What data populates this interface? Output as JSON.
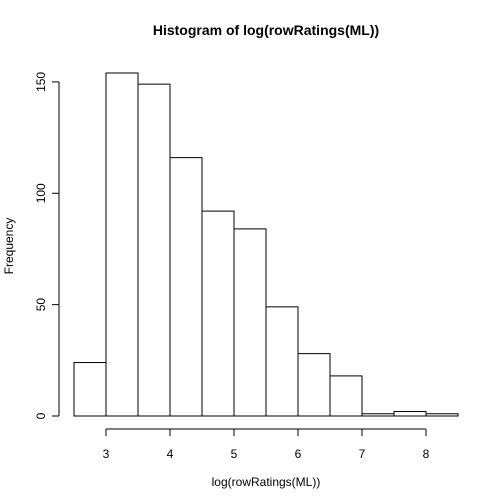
{
  "chart_data": {
    "type": "bar",
    "title": "Histogram of log(rowRatings(ML))",
    "xlabel": "log(rowRatings(ML))",
    "ylabel": "Frequency",
    "bins": [
      {
        "start": 2.5,
        "end": 3.0,
        "count": 24
      },
      {
        "start": 3.0,
        "end": 3.5,
        "count": 154
      },
      {
        "start": 3.5,
        "end": 4.0,
        "count": 149
      },
      {
        "start": 4.0,
        "end": 4.5,
        "count": 116
      },
      {
        "start": 4.5,
        "end": 5.0,
        "count": 92
      },
      {
        "start": 5.0,
        "end": 5.5,
        "count": 84
      },
      {
        "start": 5.5,
        "end": 6.0,
        "count": 49
      },
      {
        "start": 6.0,
        "end": 6.5,
        "count": 28
      },
      {
        "start": 6.5,
        "end": 7.0,
        "count": 18
      },
      {
        "start": 7.0,
        "end": 7.5,
        "count": 1
      },
      {
        "start": 7.5,
        "end": 8.0,
        "count": 2
      },
      {
        "start": 8.0,
        "end": 8.5,
        "count": 1
      }
    ],
    "xlim": [
      2.5,
      8.5
    ],
    "ylim": [
      0,
      154
    ],
    "x_ticks": [
      "3",
      "4",
      "5",
      "6",
      "7",
      "8"
    ],
    "y_ticks": [
      "0",
      "50",
      "100",
      "150"
    ],
    "grid": false,
    "legend": "none",
    "colors": {
      "bar_fill": "#ffffff",
      "bar_stroke": "#000000"
    }
  }
}
